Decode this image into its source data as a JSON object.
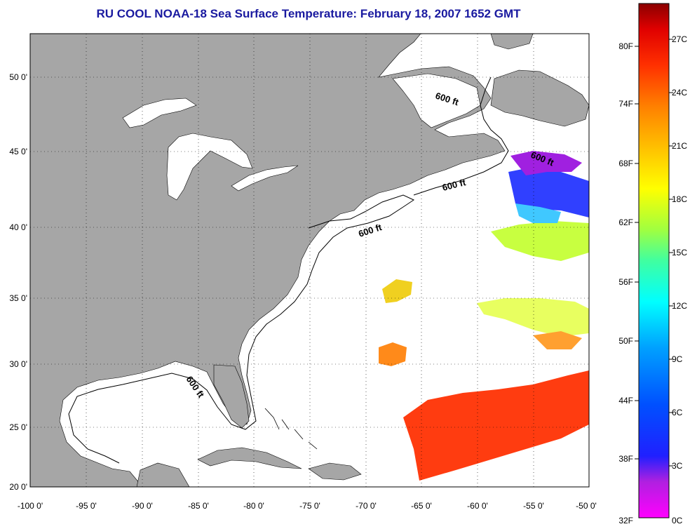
{
  "title": "RU COOL  NOAA-18  Sea Surface Temperature:  February 18, 2007 1652 GMT",
  "lon_ticks": [
    "-100 0'",
    "-95 0'",
    "-90 0'",
    "-85 0'",
    "-80 0'",
    "-75 0'",
    "-70 0'",
    "-65 0'",
    "-60 0'",
    "-55 0'",
    "-50 0'"
  ],
  "lat_ticks": [
    "50 0'",
    "45 0'",
    "40 0'",
    "35 0'",
    "30 0'",
    "25 0'",
    "20 0'"
  ],
  "contour_labels": [
    "600 ft",
    "600 ft",
    "600 ft",
    "600 ft",
    "600 ft"
  ],
  "colorbar": {
    "f_labels": [
      "80F",
      "74F",
      "68F",
      "62F",
      "56F",
      "50F",
      "44F",
      "38F",
      "32F"
    ],
    "c_labels": [
      "27C",
      "24C",
      "21C",
      "18C",
      "15C",
      "12C",
      "9C",
      "6C",
      "3C",
      "0C"
    ]
  },
  "colors": {
    "title": "#1a1aa0",
    "land": "#a6a6a6",
    "ocean": "#ffffff"
  }
}
